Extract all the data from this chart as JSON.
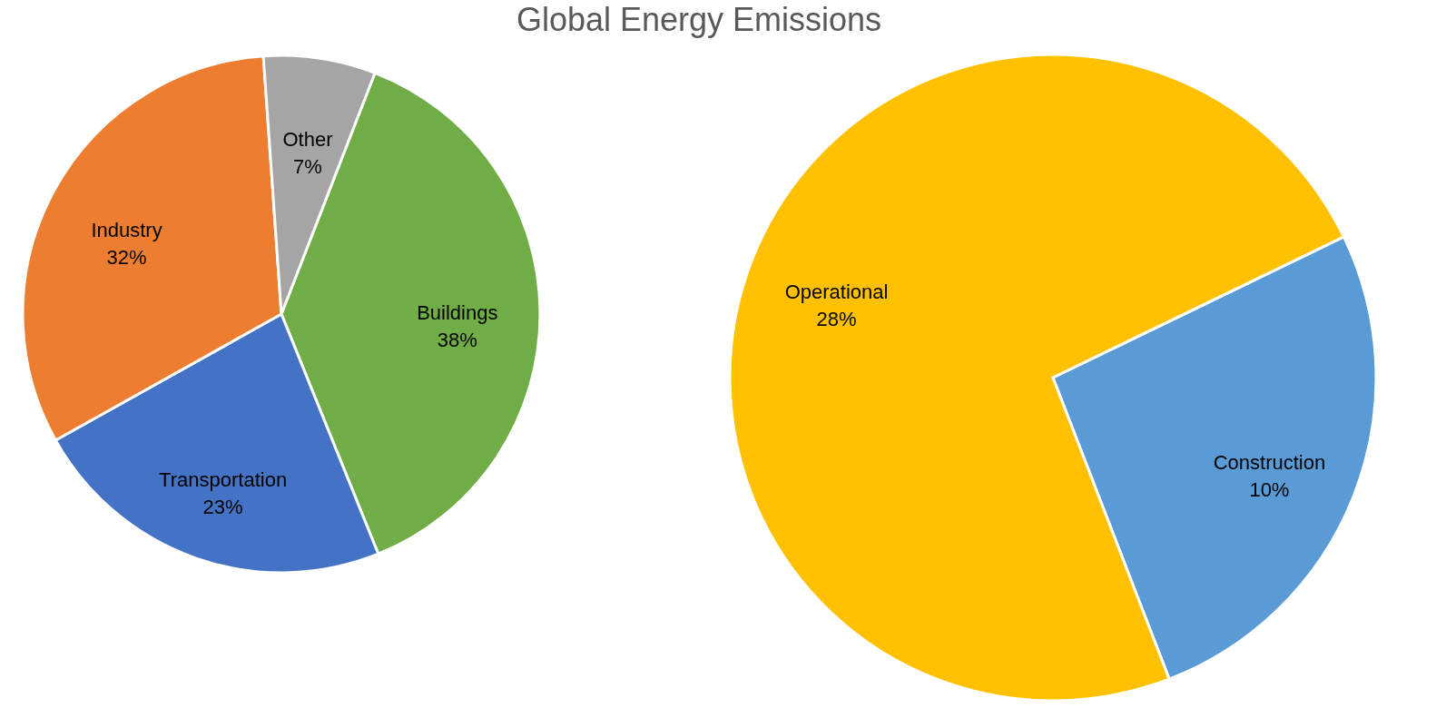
{
  "chart_data": [
    {
      "type": "pie",
      "title": "Global Energy Emissions",
      "categories": [
        "Buildings",
        "Transportation",
        "Industry",
        "Other"
      ],
      "values": [
        38,
        23,
        32,
        7
      ],
      "colors": [
        "#70ad47",
        "#4472c4",
        "#ed7d31",
        "#a5a5a5"
      ],
      "value_labels": [
        "38%",
        "23%",
        "32%",
        "7%"
      ],
      "legend": false
    },
    {
      "type": "pie",
      "categories": [
        "Construction",
        "Operational"
      ],
      "values": [
        10,
        28
      ],
      "colors": [
        "#5b9bd5",
        "#ffc000"
      ],
      "value_labels": [
        "10%",
        "28%"
      ],
      "legend": false
    }
  ]
}
